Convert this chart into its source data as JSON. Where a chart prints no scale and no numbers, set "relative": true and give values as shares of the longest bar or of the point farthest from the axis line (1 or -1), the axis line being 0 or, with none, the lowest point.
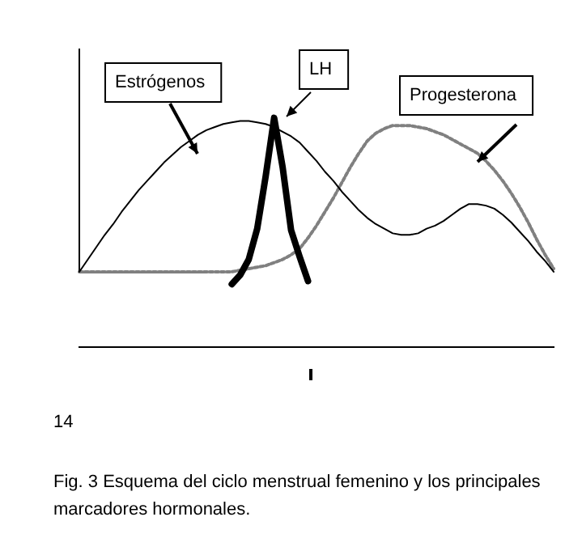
{
  "chart_data": {
    "type": "line",
    "relative": true,
    "legend": false,
    "marker": "none",
    "categories": [
      null,
      null,
      null,
      null,
      null,
      null,
      null,
      null,
      null,
      null,
      null,
      null,
      null,
      null,
      null,
      null,
      null,
      null,
      null,
      null,
      null,
      null,
      null,
      null,
      null,
      null,
      null,
      null,
      null,
      null,
      null,
      null,
      null,
      null,
      null,
      null,
      null,
      null,
      null,
      null,
      null,
      null,
      null,
      null,
      null,
      null,
      null,
      null,
      null,
      null,
      null,
      null,
      null,
      null,
      null,
      null,
      null
    ],
    "series": [
      {
        "name": "Estrógenos",
        "color": "#000000",
        "values": [
          0,
          0.08,
          0.16,
          0.24,
          0.31,
          0.39,
          0.46,
          0.53,
          0.59,
          0.65,
          0.71,
          0.76,
          0.81,
          0.85,
          0.89,
          0.92,
          0.94,
          0.96,
          0.97,
          0.98,
          0.98,
          0.97,
          0.96,
          0.94,
          0.91,
          0.88,
          0.84,
          0.78,
          0.72,
          0.65,
          0.59,
          0.52,
          0.46,
          0.4,
          0.35,
          0.31,
          0.28,
          0.25,
          0.24,
          0.24,
          0.25,
          0.28,
          0.3,
          0.33,
          0.37,
          0.41,
          0.44,
          0.44,
          0.43,
          0.41,
          0.37,
          0.32,
          0.26,
          0.2,
          0.13,
          0.07,
          0
        ]
      },
      {
        "name": "LH",
        "color": "#000000",
        "values": [
          null,
          null,
          null,
          null,
          null,
          null,
          null,
          null,
          null,
          null,
          null,
          null,
          null,
          null,
          null,
          null,
          null,
          null,
          -0.08,
          -0.02,
          0.08,
          0.28,
          0.62,
          1,
          0.68,
          0.27,
          0.1,
          -0.06,
          null,
          null,
          null,
          null,
          null,
          null,
          null,
          null,
          null,
          null,
          null,
          null,
          null,
          null,
          null,
          null,
          null,
          null,
          null,
          null,
          null,
          null,
          null,
          null,
          null,
          null,
          null,
          null,
          null
        ]
      },
      {
        "name": "Progesterona",
        "color": "#808080",
        "line_style": "dotted",
        "values": [
          0,
          0,
          0,
          0,
          0,
          0,
          0,
          0,
          0,
          0,
          0,
          0,
          0,
          0,
          0,
          0,
          0,
          0,
          0,
          0.01,
          0.02,
          0.03,
          0.04,
          0.06,
          0.08,
          0.11,
          0.15,
          0.22,
          0.3,
          0.39,
          0.48,
          0.58,
          0.68,
          0.77,
          0.85,
          0.9,
          0.93,
          0.95,
          0.95,
          0.95,
          0.94,
          0.93,
          0.91,
          0.89,
          0.86,
          0.83,
          0.8,
          0.77,
          0.72,
          0.66,
          0.59,
          0.51,
          0.42,
          0.32,
          0.21,
          0.11,
          0.02
        ]
      }
    ],
    "annotations": [
      "14",
      "Fig. 3 Esquema del ciclo menstrual femenino y los principales marcadores hormonales."
    ]
  }
}
